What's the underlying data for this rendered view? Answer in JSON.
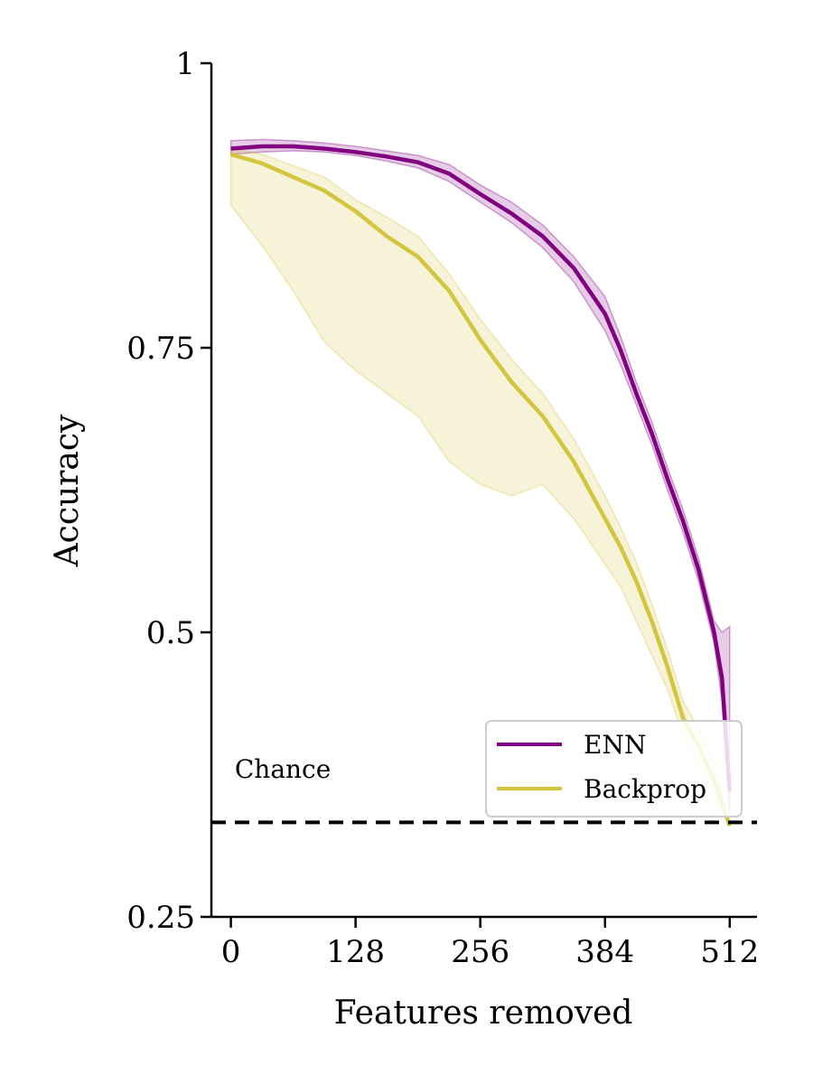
{
  "chart_data": {
    "type": "line",
    "xlabel": "Features removed",
    "ylabel": "Accuracy",
    "xlim": [
      -20,
      540
    ],
    "ylim": [
      0.25,
      1.0
    ],
    "xticks": [
      0,
      128,
      256,
      384,
      512
    ],
    "xtick_labels": [
      "0",
      "128",
      "256",
      "384",
      "512"
    ],
    "yticks": [
      0.25,
      0.5,
      0.75,
      1.0
    ],
    "ytick_labels": [
      "0.25",
      "0.5",
      "0.75",
      "1"
    ],
    "legend_position": "lower-right",
    "chance_level": 0.333,
    "annotation": "Chance",
    "series": [
      {
        "name": "ENN",
        "color": "#800080",
        "x": [
          0,
          32,
          64,
          96,
          128,
          160,
          192,
          224,
          256,
          288,
          320,
          352,
          384,
          400,
          416,
          432,
          448,
          464,
          480,
          496,
          504,
          512
        ],
        "y": [
          0.925,
          0.927,
          0.927,
          0.925,
          0.922,
          0.918,
          0.913,
          0.903,
          0.885,
          0.868,
          0.848,
          0.82,
          0.78,
          0.748,
          0.71,
          0.675,
          0.635,
          0.598,
          0.555,
          0.5,
          0.46,
          0.36
        ],
        "band_low": [
          0.92,
          0.922,
          0.923,
          0.922,
          0.919,
          0.914,
          0.908,
          0.896,
          0.878,
          0.86,
          0.838,
          0.808,
          0.765,
          0.735,
          0.7,
          0.665,
          0.625,
          0.588,
          0.545,
          0.49,
          0.44,
          0.34
        ],
        "band_high": [
          0.932,
          0.933,
          0.932,
          0.93,
          0.927,
          0.923,
          0.919,
          0.911,
          0.893,
          0.878,
          0.858,
          0.83,
          0.795,
          0.76,
          0.72,
          0.685,
          0.645,
          0.608,
          0.565,
          0.51,
          0.5,
          0.505
        ]
      },
      {
        "name": "Backprop",
        "color": "#d4c53f",
        "x": [
          0,
          32,
          64,
          96,
          128,
          160,
          192,
          224,
          256,
          288,
          320,
          352,
          384,
          400,
          416,
          432,
          448,
          464,
          480,
          496,
          512
        ],
        "y": [
          0.92,
          0.912,
          0.9,
          0.888,
          0.87,
          0.848,
          0.83,
          0.8,
          0.757,
          0.72,
          0.69,
          0.65,
          0.6,
          0.575,
          0.545,
          0.51,
          0.47,
          0.425,
          0.4,
          0.37,
          0.33
        ],
        "band_low": [
          0.875,
          0.84,
          0.8,
          0.755,
          0.73,
          0.71,
          0.69,
          0.65,
          0.63,
          0.62,
          0.63,
          0.6,
          0.56,
          0.54,
          0.51,
          0.48,
          0.45,
          0.41,
          0.385,
          0.355,
          0.33
        ],
        "band_high": [
          0.925,
          0.92,
          0.91,
          0.9,
          0.88,
          0.865,
          0.848,
          0.815,
          0.775,
          0.74,
          0.71,
          0.67,
          0.62,
          0.592,
          0.562,
          0.525,
          0.485,
          0.44,
          0.415,
          0.385,
          0.335
        ]
      }
    ]
  }
}
